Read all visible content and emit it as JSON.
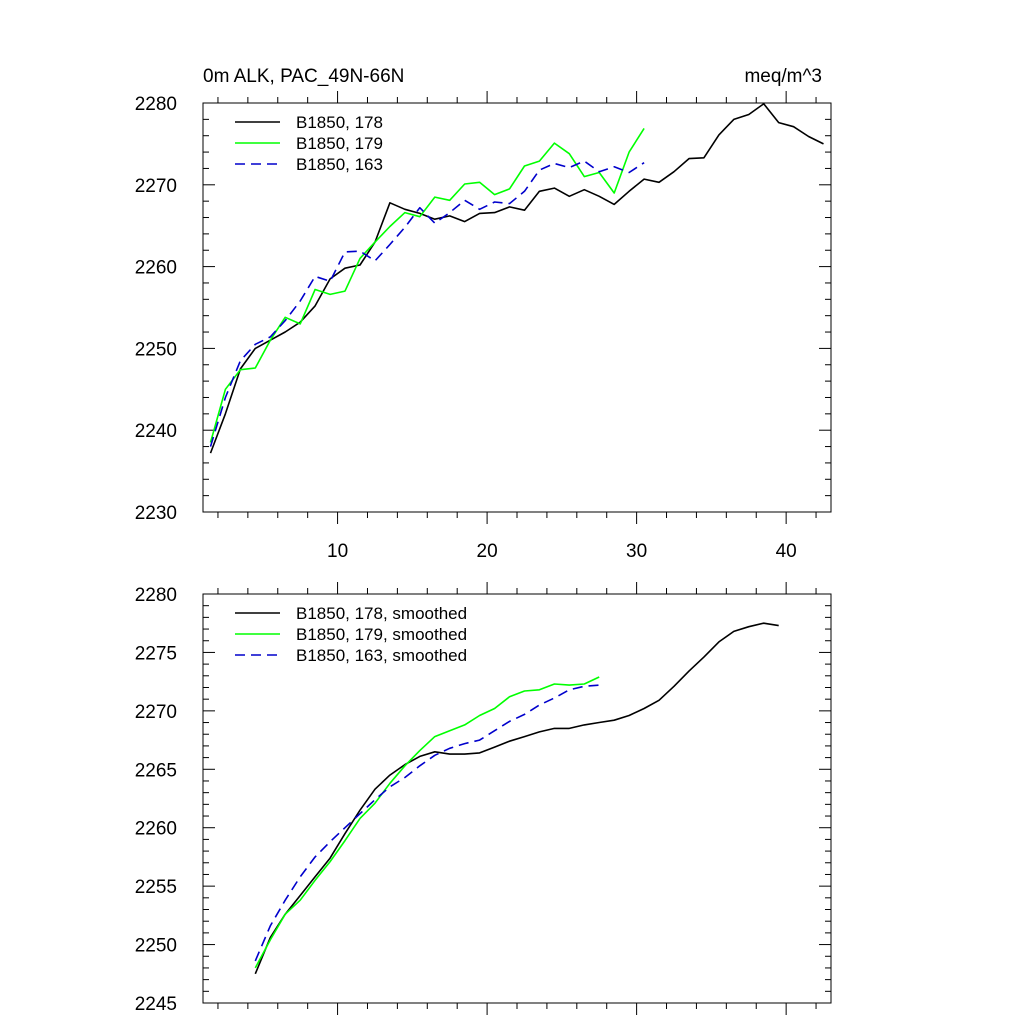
{
  "chart_data": [
    {
      "type": "line",
      "title_left": "0m ALK, PAC_49N-66N",
      "title_right": "meq/m^3",
      "xlim": [
        1,
        43
      ],
      "ylim": [
        2230,
        2280
      ],
      "xticks": [
        10,
        20,
        30,
        40
      ],
      "xtick_labels": [
        "10",
        "20",
        "30",
        "40"
      ],
      "yticks": [
        2230,
        2240,
        2250,
        2260,
        2270,
        2280
      ],
      "ytick_labels": [
        "2230",
        "2240",
        "2250",
        "2260",
        "2270",
        "2280"
      ],
      "series": [
        {
          "name": "B1850, 178",
          "color": "#000000",
          "dash": "solid",
          "x": [
            1.5,
            2.5,
            3.5,
            4.5,
            5.5,
            6.5,
            7.5,
            8.5,
            9.5,
            10.5,
            11.5,
            12.5,
            13.5,
            14.5,
            15.5,
            16.5,
            17.5,
            18.5,
            19.5,
            20.5,
            21.5,
            22.5,
            23.5,
            24.5,
            25.5,
            26.5,
            27.5,
            28.5,
            29.5,
            30.5,
            31.5,
            32.5,
            33.5,
            34.5,
            35.5,
            36.5,
            37.5,
            38.5,
            39.5,
            40.5,
            41.5,
            42.5
          ],
          "y": [
            2237.2,
            2242,
            2247.5,
            2250,
            2251,
            2252,
            2253.2,
            2255.2,
            2258.5,
            2259.8,
            2260.2,
            2263,
            2267.8,
            2267,
            2266.5,
            2265.8,
            2266.2,
            2265.5,
            2266.5,
            2266.6,
            2267.3,
            2266.9,
            2269.2,
            2269.6,
            2268.6,
            2269.4,
            2268.6,
            2267.6,
            2269.2,
            2270.7,
            2270.3,
            2271.6,
            2273.2,
            2273.3,
            2276.1,
            2278,
            2278.6,
            2279.9,
            2277.6,
            2277.1,
            2275.9,
            2275
          ]
        },
        {
          "name": "B1850, 179",
          "color": "#00ff00",
          "dash": "solid",
          "x": [
            1.5,
            2.5,
            3.5,
            4.5,
            5.5,
            6.5,
            7.5,
            8.5,
            9.5,
            10.5,
            11.5,
            12.5,
            13.5,
            14.5,
            15.5,
            16.5,
            17.5,
            18.5,
            19.5,
            20.5,
            21.5,
            22.5,
            23.5,
            24.5,
            25.5,
            26.5,
            27.5,
            28.5,
            29.5,
            30.5
          ],
          "y": [
            2238.5,
            2245,
            2247.4,
            2247.6,
            2251,
            2253.8,
            2253,
            2257.2,
            2256.6,
            2257,
            2261,
            2263,
            2264.9,
            2266.6,
            2266.1,
            2268.5,
            2268.1,
            2270.1,
            2270.3,
            2268.8,
            2269.5,
            2272.3,
            2272.9,
            2275.1,
            2273.8,
            2271,
            2271.5,
            2269,
            2274,
            2276.9
          ]
        },
        {
          "name": "B1850, 163",
          "color": "#0000cc",
          "dash": "10,6",
          "x": [
            1.5,
            2.5,
            3.5,
            4.5,
            5.5,
            6.5,
            7.5,
            8.5,
            9.5,
            10.5,
            11.5,
            12.5,
            13.5,
            14.5,
            15.5,
            16.5,
            17.5,
            18.5,
            19.5,
            20.5,
            21.5,
            22.5,
            23.5,
            24.5,
            25.5,
            26.5,
            27.5,
            28.5,
            29.5,
            30.5
          ],
          "y": [
            2238,
            2244,
            2248.5,
            2250.5,
            2251.4,
            2253.4,
            2255.8,
            2258.8,
            2258.2,
            2261.8,
            2261.9,
            2260.7,
            2262.7,
            2264.8,
            2267.2,
            2265.3,
            2266.6,
            2268.1,
            2267,
            2267.9,
            2267.7,
            2269.2,
            2271.8,
            2272.6,
            2272.1,
            2272.9,
            2271.6,
            2272.2,
            2271.5,
            2272.7
          ]
        }
      ],
      "legend": "top-left"
    },
    {
      "type": "line",
      "xlim": [
        1,
        43
      ],
      "ylim": [
        2245,
        2280
      ],
      "xticks": [
        10,
        20,
        30,
        40
      ],
      "yticks": [
        2245,
        2250,
        2255,
        2260,
        2265,
        2270,
        2275,
        2280
      ],
      "ytick_labels": [
        "2245",
        "2250",
        "2255",
        "2260",
        "2265",
        "2270",
        "2275",
        "2280"
      ],
      "series": [
        {
          "name": "B1850, 178, smoothed",
          "color": "#000000",
          "dash": "solid",
          "x": [
            4.5,
            5.5,
            6.5,
            7.5,
            8.5,
            9.5,
            10.5,
            11.5,
            12.5,
            13.5,
            14.5,
            15.5,
            16.5,
            17.5,
            18.5,
            19.5,
            20.5,
            21.5,
            22.5,
            23.5,
            24.5,
            25.5,
            26.5,
            27.5,
            28.5,
            29.5,
            30.5,
            31.5,
            32.5,
            33.5,
            34.5,
            35.5,
            36.5,
            37.5,
            38.5,
            39.5
          ],
          "y": [
            2247.5,
            2250.6,
            2252.6,
            2254.2,
            2255.8,
            2257.4,
            2259.5,
            2261.5,
            2263.3,
            2264.5,
            2265.4,
            2266.1,
            2266.5,
            2266.3,
            2266.3,
            2266.4,
            2266.9,
            2267.4,
            2267.8,
            2268.2,
            2268.5,
            2268.5,
            2268.8,
            2269,
            2269.2,
            2269.6,
            2270.2,
            2270.9,
            2272.1,
            2273.4,
            2274.6,
            2275.9,
            2276.8,
            2277.2,
            2277.5,
            2277.3
          ]
        },
        {
          "name": "B1850, 179, smoothed",
          "color": "#00ff00",
          "dash": "solid",
          "x": [
            4.5,
            5.5,
            6.5,
            7.5,
            8.5,
            9.5,
            10.5,
            11.5,
            12.5,
            13.5,
            14.5,
            15.5,
            16.5,
            17.5,
            18.5,
            19.5,
            20.5,
            21.5,
            22.5,
            23.5,
            24.5,
            25.5,
            26.5,
            27.5
          ],
          "y": [
            2248,
            2250.4,
            2252.6,
            2253.8,
            2255.5,
            2257.1,
            2258.9,
            2260.8,
            2262.1,
            2263.8,
            2265.3,
            2266.6,
            2267.8,
            2268.3,
            2268.8,
            2269.6,
            2270.2,
            2271.2,
            2271.7,
            2271.8,
            2272.3,
            2272.2,
            2272.3,
            2272.9
          ]
        },
        {
          "name": "B1850, 163, smoothed",
          "color": "#0000cc",
          "dash": "10,6",
          "x": [
            4.5,
            5.5,
            6.5,
            7.5,
            8.5,
            9.5,
            10.5,
            11.5,
            12.5,
            13.5,
            14.5,
            15.5,
            16.5,
            17.5,
            18.5,
            19.5,
            20.5,
            21.5,
            22.5,
            23.5,
            24.5,
            25.5,
            26.5,
            27.5
          ],
          "y": [
            2248.6,
            2251.6,
            2253.8,
            2255.8,
            2257.5,
            2258.8,
            2260,
            2261.2,
            2262.4,
            2263.5,
            2264.3,
            2265.3,
            2266.2,
            2266.8,
            2267.2,
            2267.5,
            2268.3,
            2269.1,
            2269.7,
            2270.5,
            2271.1,
            2271.8,
            2272.1,
            2272.2
          ]
        }
      ],
      "legend": "top-left"
    }
  ]
}
